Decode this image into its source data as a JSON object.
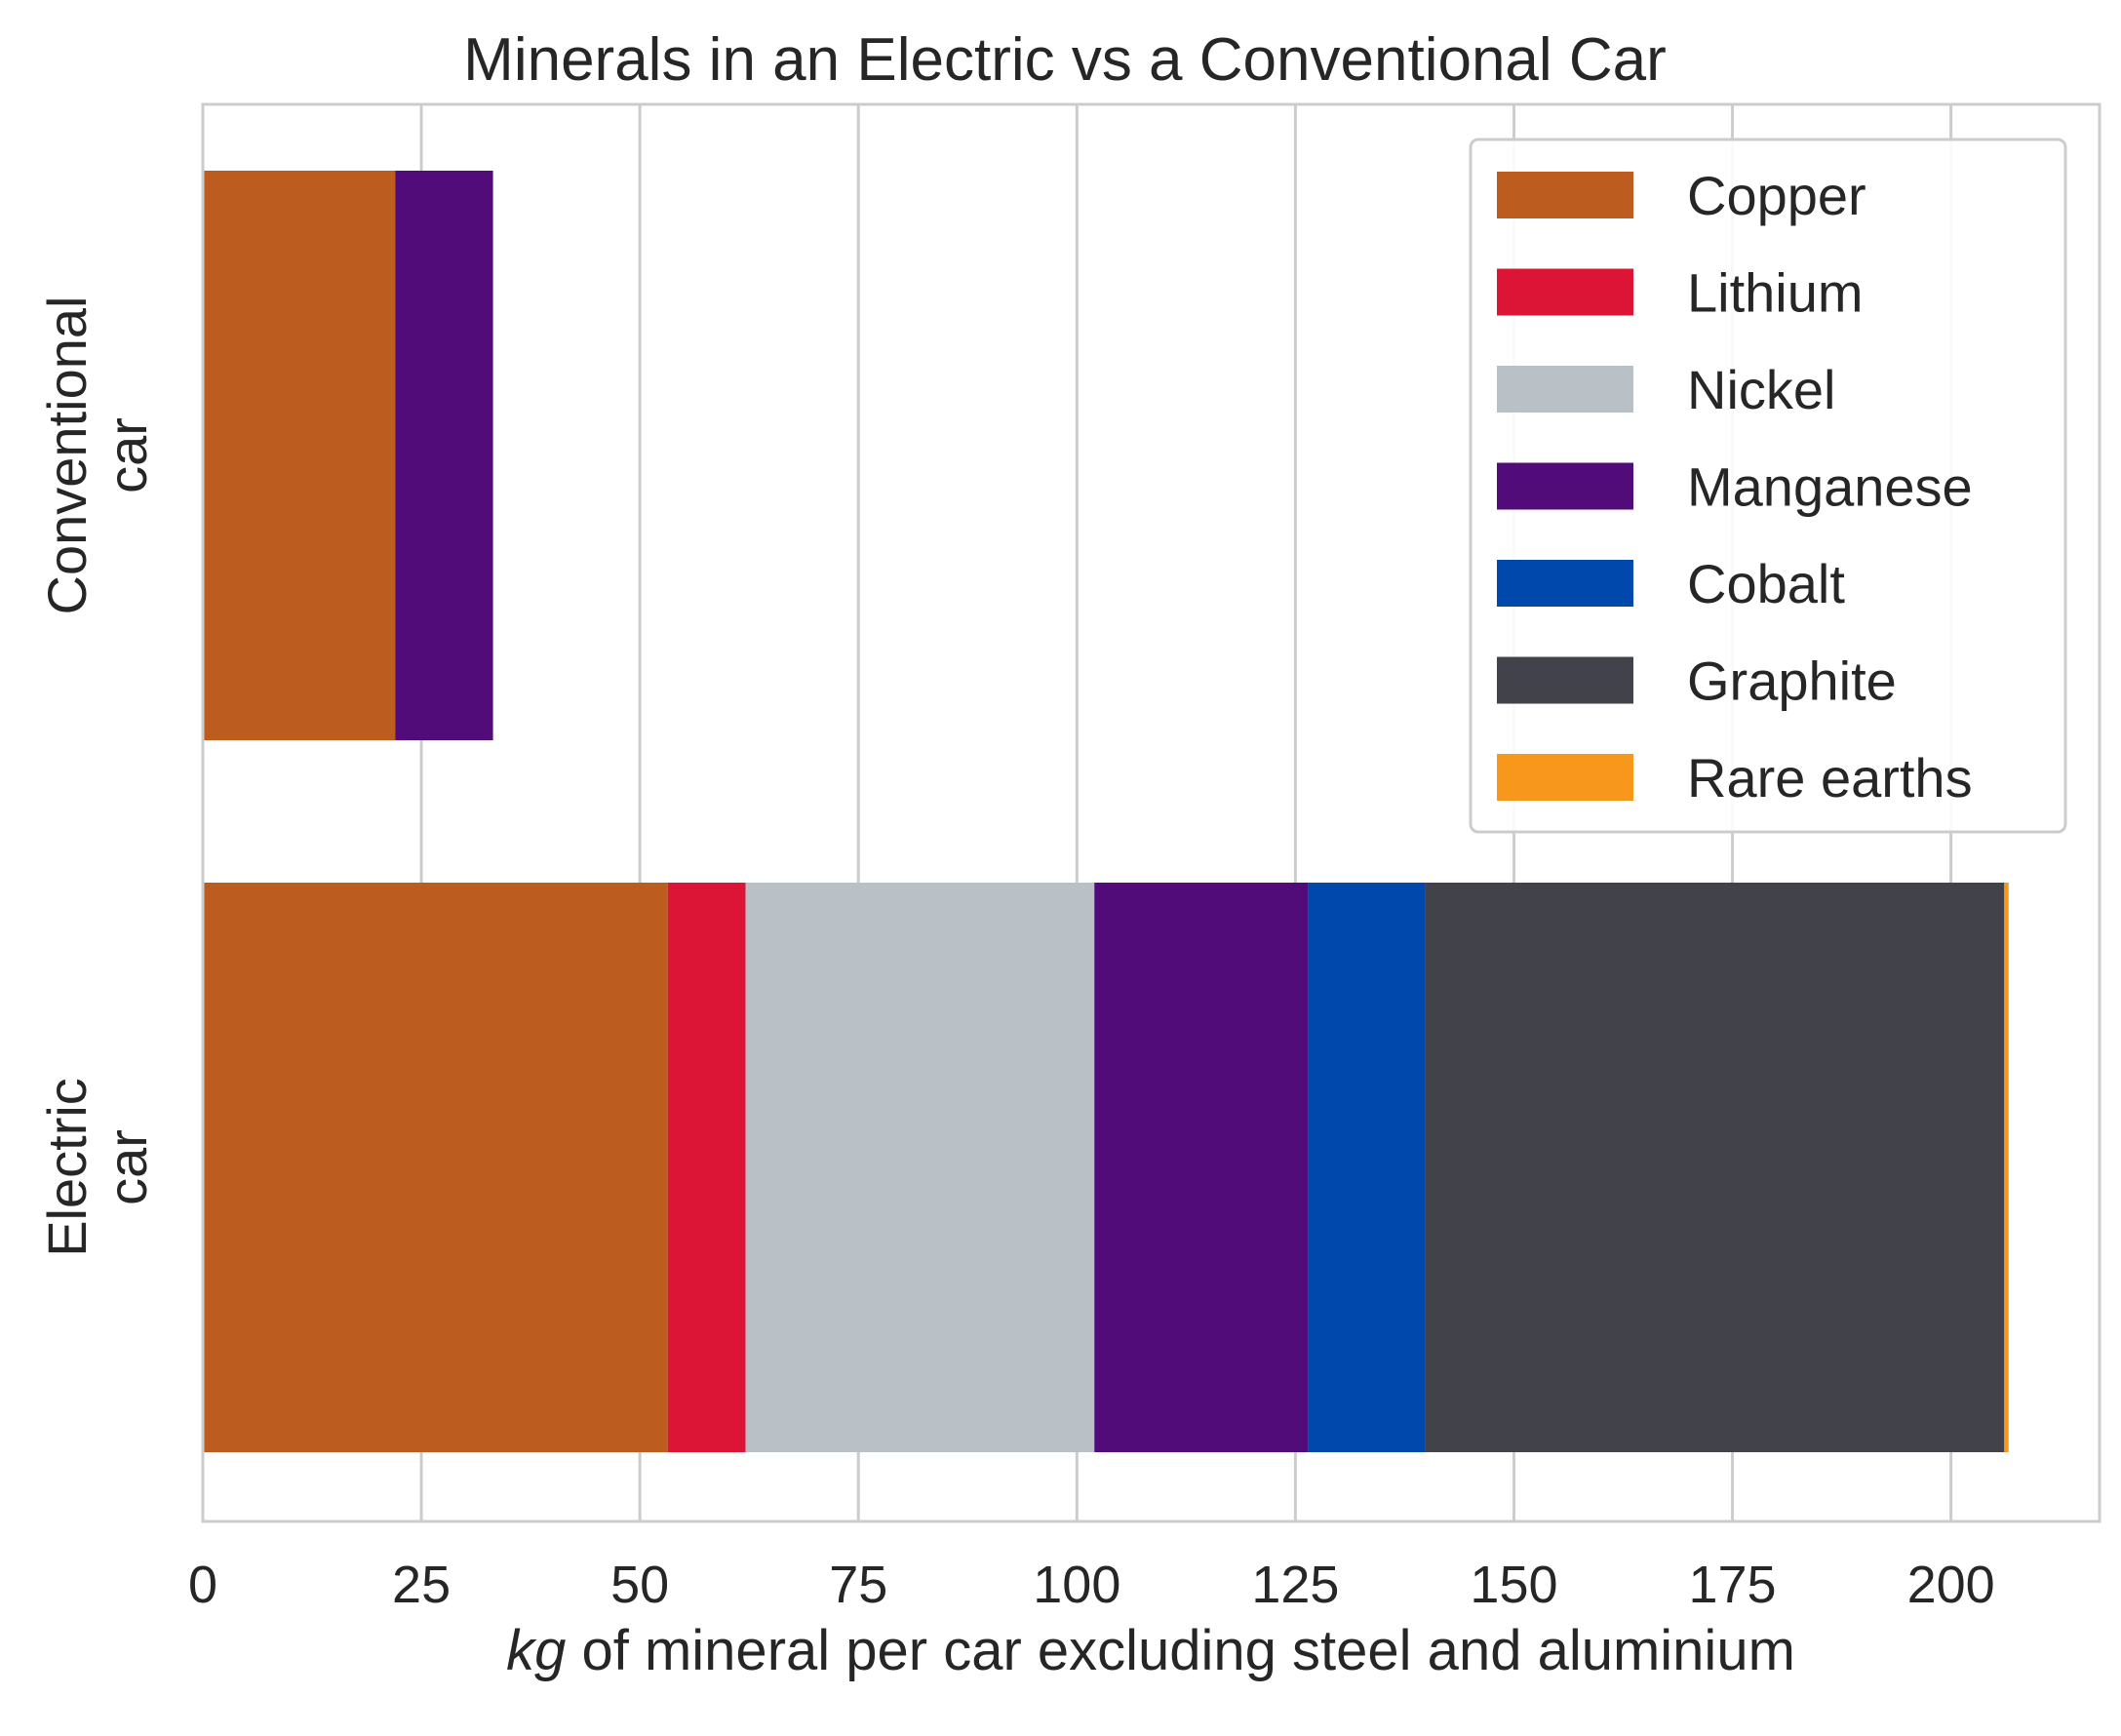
{
  "chart_data": {
    "type": "bar",
    "orientation": "horizontal",
    "stacked": true,
    "title": "Minerals in an Electric vs a Conventional Car",
    "xlabel_italic": "kg",
    "xlabel_rest": " of mineral per car excluding steel and aluminium",
    "ylabel": "",
    "categories": [
      [
        "Conventional",
        "car"
      ],
      [
        "Electric",
        "car"
      ]
    ],
    "xlim": [
      0,
      217
    ],
    "xticks": [
      0,
      25,
      50,
      75,
      100,
      125,
      150,
      175,
      200
    ],
    "grid": "x",
    "legend_position": "top-right",
    "series": [
      {
        "name": "Copper",
        "color": "#bc5c1f",
        "values": [
          22.0,
          53.2
        ]
      },
      {
        "name": "Lithium",
        "color": "#dc1436",
        "values": [
          0.0,
          8.9
        ]
      },
      {
        "name": "Nickel",
        "color": "#bac1c6",
        "values": [
          0.0,
          39.9
        ]
      },
      {
        "name": "Manganese",
        "color": "#520c7a",
        "values": [
          11.2,
          24.5
        ]
      },
      {
        "name": "Cobalt",
        "color": "#0048ac",
        "values": [
          0.0,
          13.3
        ]
      },
      {
        "name": "Graphite",
        "color": "#42424b",
        "values": [
          0.0,
          66.3
        ]
      },
      {
        "name": "Rare earths",
        "color": "#f7981d",
        "values": [
          0.0,
          0.5
        ]
      }
    ]
  }
}
